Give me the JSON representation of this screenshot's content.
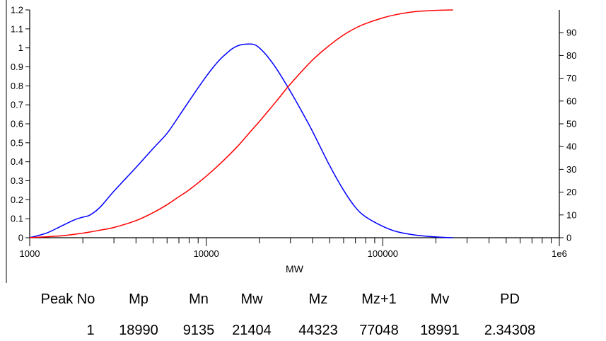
{
  "chart_data": {
    "type": "line",
    "xlabel": "MW",
    "x_scale": "log",
    "xlim": [
      1000,
      1000000
    ],
    "x_ticks": [
      {
        "value": 1000,
        "label": "1000"
      },
      {
        "value": 10000,
        "label": "10000"
      },
      {
        "value": 100000,
        "label": "100000"
      },
      {
        "value": 1000000,
        "label": "1e6"
      }
    ],
    "y_left": {
      "lim": [
        0,
        1.2
      ],
      "ticks": [
        "0",
        "0.1",
        "0.2",
        "0.3",
        "0.4",
        "0.5",
        "0.6",
        "0.7",
        "0.8",
        "0.9",
        "1",
        "1.1",
        "1.2"
      ]
    },
    "y_right": {
      "lim": [
        0,
        100
      ],
      "ticks": [
        "0",
        "10",
        "20",
        "30",
        "40",
        "50",
        "60",
        "70",
        "80",
        "90"
      ]
    },
    "grid": false,
    "legend": "none",
    "series": [
      {
        "axis": "left",
        "color": "#0000ff",
        "x": [
          1000,
          1250,
          1500,
          1800,
          2000,
          2200,
          2500,
          3000,
          4000,
          5000,
          6000,
          7000,
          8000,
          9000,
          10000,
          11000,
          12000,
          13000,
          14000,
          15000,
          16000,
          17000,
          18000,
          19000,
          20000,
          22000,
          25000,
          30000,
          35000,
          40000,
          50000,
          60000,
          70000,
          80000,
          100000,
          120000,
          150000,
          200000,
          250000
        ],
        "y": [
          0.0,
          0.025,
          0.06,
          0.095,
          0.108,
          0.12,
          0.16,
          0.245,
          0.37,
          0.47,
          0.55,
          0.64,
          0.72,
          0.79,
          0.85,
          0.9,
          0.94,
          0.97,
          0.995,
          1.01,
          1.018,
          1.02,
          1.02,
          1.015,
          1.0,
          0.96,
          0.89,
          0.77,
          0.66,
          0.56,
          0.38,
          0.25,
          0.16,
          0.11,
          0.06,
          0.032,
          0.015,
          0.004,
          0.0
        ]
      },
      {
        "axis": "right",
        "color": "#ff0000",
        "x": [
          1000,
          1500,
          2000,
          2500,
          3000,
          4000,
          5000,
          6000,
          7000,
          8000,
          10000,
          12000,
          15000,
          18000,
          20000,
          25000,
          30000,
          40000,
          50000,
          60000,
          70000,
          80000,
          100000,
          120000,
          150000,
          200000,
          250000
        ],
        "y": [
          0.0,
          0.8,
          2.0,
          3.3,
          4.5,
          7.5,
          11.0,
          14.5,
          18.0,
          21.0,
          27.0,
          32.5,
          40.0,
          47.0,
          51.0,
          60.0,
          67.5,
          78.0,
          84.5,
          89.0,
          92.0,
          94.0,
          96.5,
          98.0,
          99.2,
          99.8,
          100.0
        ]
      }
    ]
  },
  "results": {
    "headers": [
      "Peak No",
      "Mp",
      "Mn",
      "Mw",
      "Mz",
      "Mz+1",
      "Mv",
      "PD"
    ],
    "values": [
      "1",
      "18990",
      "9135",
      "21404",
      "44323",
      "77048",
      "18991",
      "2.34308"
    ]
  }
}
